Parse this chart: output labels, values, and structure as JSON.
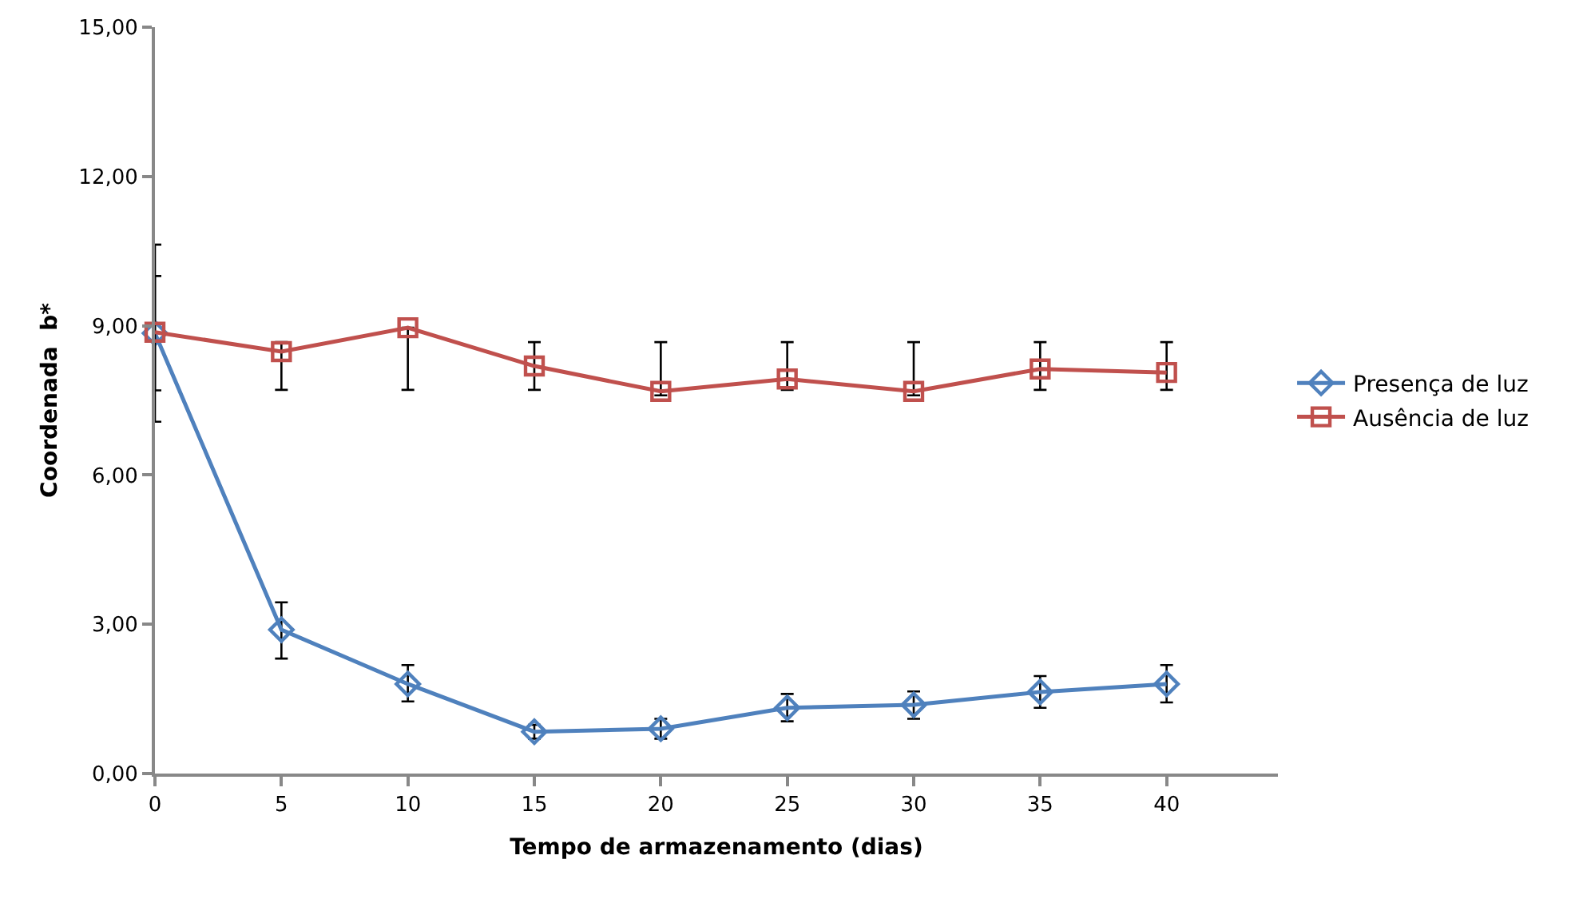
{
  "chart_data": {
    "type": "line",
    "xlabel": "Tempo de armazenamento (dias)",
    "ylabel": "Coordenada  b*",
    "x": [
      0,
      5,
      10,
      15,
      20,
      25,
      30,
      35,
      40
    ],
    "xlim": [
      0,
      44.4
    ],
    "xticks": [
      0,
      5,
      10,
      15,
      20,
      25,
      30,
      35,
      40
    ],
    "ylim": [
      0,
      15
    ],
    "yticks": [
      {
        "value": 0,
        "label": "0,00"
      },
      {
        "value": 3,
        "label": "3,00"
      },
      {
        "value": 6,
        "label": "6,00"
      },
      {
        "value": 9,
        "label": "9,00"
      },
      {
        "value": 12,
        "label": "12,00"
      },
      {
        "value": 15,
        "label": "15,00"
      }
    ],
    "grid": false,
    "legend": "right",
    "line_style": "solid",
    "series": [
      {
        "name": "Presença de luz",
        "color": "#4f81bd",
        "marker": "diamond",
        "values": [
          8.85,
          2.89,
          1.8,
          0.84,
          0.9,
          1.32,
          1.38,
          1.64,
          1.8
        ],
        "errors": [
          [
            7.7,
            10.0
          ],
          [
            2.31,
            3.44
          ],
          [
            1.45,
            2.18
          ],
          [
            0.7,
            0.98
          ],
          [
            0.7,
            1.1
          ],
          [
            1.05,
            1.6
          ],
          [
            1.1,
            1.65
          ],
          [
            1.32,
            1.96
          ],
          [
            1.43,
            2.18
          ]
        ]
      },
      {
        "name": "Ausência de luz",
        "color": "#c0504d",
        "marker": "square",
        "values": [
          8.87,
          8.48,
          8.96,
          8.19,
          7.68,
          7.93,
          7.68,
          8.13,
          8.06
        ],
        "errors": [
          [
            7.07,
            10.63
          ],
          [
            7.71,
            8.67
          ],
          [
            7.71,
            8.96
          ],
          [
            7.71,
            8.67
          ],
          [
            7.6,
            8.67
          ],
          [
            7.71,
            8.67
          ],
          [
            7.6,
            8.67
          ],
          [
            7.71,
            8.67
          ],
          [
            7.71,
            8.67
          ]
        ]
      }
    ]
  }
}
